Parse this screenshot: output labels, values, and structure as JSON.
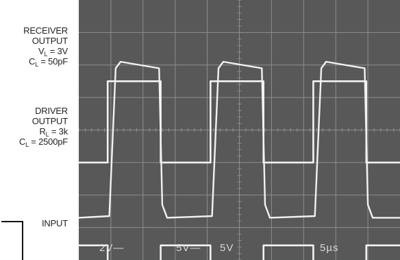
{
  "labels": {
    "receiver": {
      "line1": "RECEIVER",
      "line2": "OUTPUT",
      "vl_symbol": "V",
      "vl_sub": "L",
      "vl_value": " = 3V",
      "cl_symbol": "C",
      "cl_sub": "L",
      "cl_value": " = 50pF"
    },
    "driver": {
      "line1": "DRIVER",
      "line2": "OUTPUT",
      "rl_symbol": "R",
      "rl_sub": "L",
      "rl_value": " = 3k",
      "cl_symbol": "C",
      "cl_sub": "L",
      "cl_value": " = 2500pF"
    },
    "input": "INPUT"
  },
  "scope": {
    "readouts": [
      "2V—",
      "5V—",
      "5V",
      "5µs"
    ],
    "colors": {
      "screen": "#585858",
      "grid": "#8e8e8e",
      "trace": "#f2f2f2"
    }
  },
  "chart_data": {
    "type": "line",
    "title": "",
    "xlabel": "",
    "ylabel": "",
    "grid": true,
    "x_divisions": 10,
    "y_divisions": 8,
    "time_per_division": "5µs",
    "series": [
      {
        "name": "RECEIVER OUTPUT",
        "volts_per_division": "2V",
        "x_div": [
          0,
          0.9,
          0.9,
          2.55,
          2.55,
          4.1,
          4.1,
          5.75,
          5.75,
          7.3,
          7.3,
          8.95,
          8.95,
          10
        ],
        "y_div": [
          -1,
          -1,
          1.5,
          1.5,
          -1,
          -1,
          1.5,
          1.5,
          -1,
          -1,
          1.5,
          1.5,
          -1,
          -1
        ]
      },
      {
        "name": "DRIVER OUTPUT",
        "volts_per_division": "5V",
        "x_div": [
          0,
          0.95,
          1.15,
          1.3,
          2.5,
          2.6,
          2.75,
          4.15,
          4.35,
          4.5,
          5.7,
          5.8,
          5.95,
          7.35,
          7.55,
          7.7,
          8.9,
          9.0,
          9.15,
          10
        ],
        "y_div": [
          -2.7,
          -2.65,
          1.9,
          2.1,
          1.9,
          -2.3,
          -2.7,
          -2.65,
          1.9,
          2.1,
          1.9,
          -2.3,
          -2.7,
          -2.65,
          1.9,
          2.1,
          1.9,
          -2.3,
          -2.7,
          -2.7
        ]
      },
      {
        "name": "INPUT",
        "volts_per_division": "5V",
        "x_div": [
          0,
          0.9,
          0.9,
          2.55,
          2.55,
          4.1,
          4.1,
          5.75,
          5.75,
          7.3,
          7.3,
          8.95,
          8.95,
          10
        ],
        "y_div": [
          -3.55,
          -3.55,
          -4.2,
          -4.2,
          -3.55,
          -3.55,
          -4.2,
          -4.2,
          -3.55,
          -3.55,
          -4.2,
          -4.2,
          -3.55,
          -3.55
        ]
      }
    ]
  }
}
